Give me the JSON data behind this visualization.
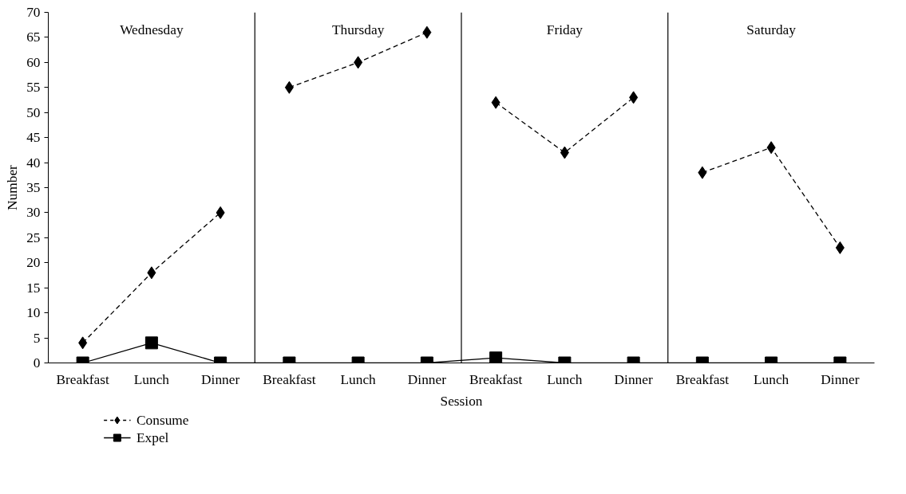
{
  "chart_data": {
    "type": "line",
    "xlabel": "Session",
    "ylabel": "Number",
    "categories": [
      "Breakfast",
      "Lunch",
      "Dinner",
      "Breakfast",
      "Lunch",
      "Dinner",
      "Breakfast",
      "Lunch",
      "Dinner",
      "Breakfast",
      "Lunch",
      "Dinner"
    ],
    "ylim": [
      0,
      70
    ],
    "yticks": [
      0,
      5,
      10,
      15,
      20,
      25,
      30,
      35,
      40,
      45,
      50,
      55,
      60,
      65,
      70
    ],
    "grid": false,
    "legend": "bottom left",
    "annotations": [
      "Wednesday",
      "Thursday",
      "Friday",
      "Saturday"
    ],
    "series": [
      {
        "name": "Consume",
        "color": "#000000",
        "marker": "diamond",
        "line_style": "dashed",
        "values": [
          4,
          18,
          30,
          null,
          null,
          null,
          null,
          null,
          null,
          null,
          null,
          null
        ]
      },
      {
        "color": "#000000",
        "marker": "diamond",
        "line_style": "dashed",
        "values": [
          null,
          null,
          null,
          55,
          60,
          66,
          null,
          null,
          null,
          null,
          null,
          null
        ]
      },
      {
        "color": "#000000",
        "marker": "diamond",
        "line_style": "dashed",
        "values": [
          null,
          null,
          null,
          null,
          null,
          null,
          52,
          42,
          53,
          null,
          null,
          null
        ]
      },
      {
        "color": "#000000",
        "marker": "diamond",
        "line_style": "dashed",
        "values": [
          null,
          null,
          null,
          null,
          null,
          null,
          null,
          null,
          null,
          38,
          43,
          23
        ]
      },
      {
        "name": "Expel",
        "color": "#000000",
        "marker": "square",
        "line_style": "solid",
        "values": [
          0,
          4,
          0,
          0,
          0,
          0,
          1,
          0,
          0,
          0,
          0,
          0
        ]
      }
    ]
  }
}
